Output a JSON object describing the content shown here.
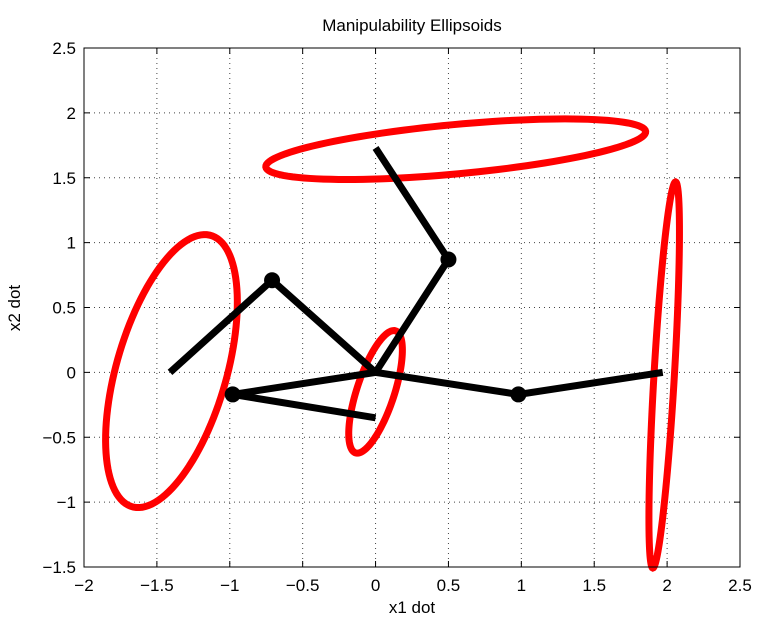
{
  "chart_data": {
    "type": "line",
    "title": "Manipulability Ellipsoids",
    "xlabel": "x1 dot",
    "ylabel": "x2 dot",
    "xlim": [
      -2,
      2.5
    ],
    "ylim": [
      -1.5,
      2.5
    ],
    "xticks": [
      -2,
      -1.5,
      -1,
      -0.5,
      0,
      0.5,
      1,
      1.5,
      2,
      2.5
    ],
    "yticks": [
      -1.5,
      -1,
      -0.5,
      0,
      0.5,
      1,
      1.5,
      2,
      2.5
    ],
    "xtick_labels": [
      "−2",
      "−1.5",
      "−1",
      "−0.5",
      "0",
      "0.5",
      "1",
      "1.5",
      "2",
      "2.5"
    ],
    "ytick_labels": [
      "−1.5",
      "−1",
      "−0.5",
      "0",
      "0.5",
      "1",
      "1.5",
      "2",
      "2.5"
    ],
    "grid": true,
    "arm_color": "#000000",
    "ellipse_color": "#ff0000",
    "arms": [
      {
        "points": [
          [
            0,
            0
          ],
          [
            0.5,
            0.87
          ],
          [
            0,
            1.73
          ]
        ]
      },
      {
        "points": [
          [
            0,
            0
          ],
          [
            -0.71,
            0.71
          ],
          [
            -1.41,
            0
          ]
        ]
      },
      {
        "points": [
          [
            0,
            0
          ],
          [
            -0.98,
            -0.17
          ],
          [
            0,
            -0.35
          ]
        ]
      },
      {
        "points": [
          [
            0,
            0
          ],
          [
            0.98,
            -0.17
          ],
          [
            1.97,
            0
          ]
        ]
      }
    ],
    "ellipses": [
      {
        "cx": 0.55,
        "cy": 1.72,
        "rx": 1.31,
        "ry": 0.19,
        "angle_deg": 6
      },
      {
        "cx": -1.4,
        "cy": 0.01,
        "rx": 1.08,
        "ry": 0.38,
        "angle_deg": 76
      },
      {
        "cx": 0.0,
        "cy": -0.15,
        "rx": 0.49,
        "ry": 0.13,
        "angle_deg": 74
      },
      {
        "cx": 1.98,
        "cy": -0.02,
        "rx": 1.49,
        "ry": 0.07,
        "angle_deg": 87
      }
    ]
  }
}
